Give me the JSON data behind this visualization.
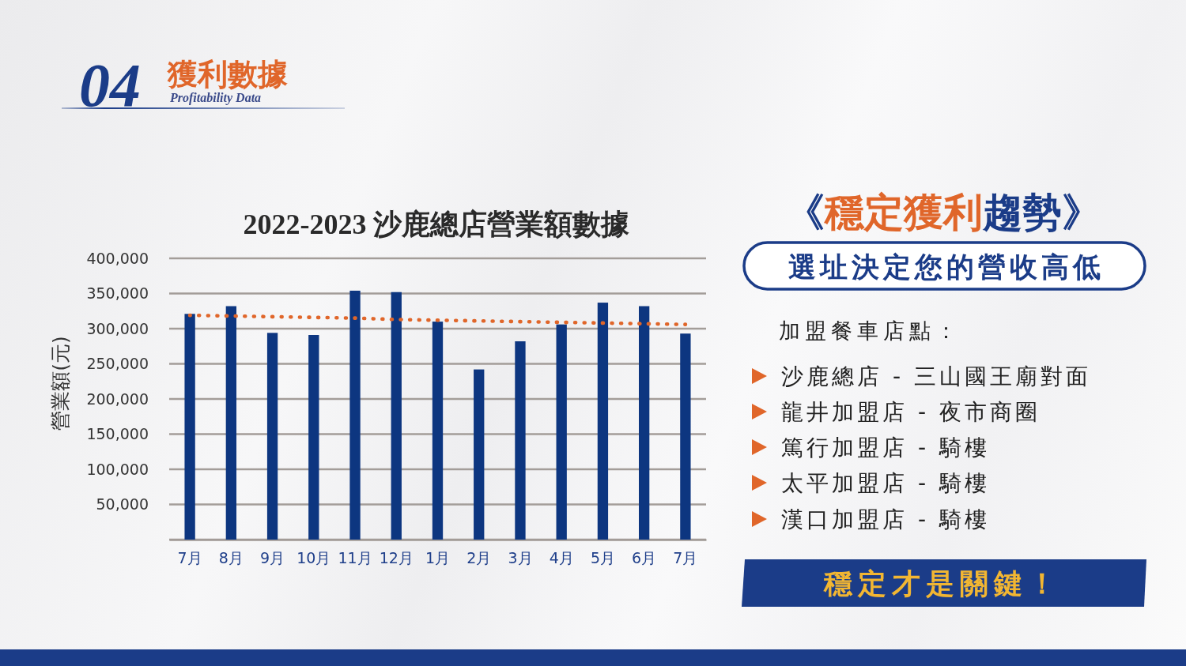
{
  "chart_data": {
    "type": "bar",
    "title": "2022-2023 沙鹿總店營業額數據",
    "ylabel": "營業額(元)",
    "categories": [
      "7月",
      "8月",
      "9月",
      "10月",
      "11月",
      "12月",
      "1月",
      "2月",
      "3月",
      "4月",
      "5月",
      "6月",
      "7月"
    ],
    "series": [
      {
        "color": "#0d3680",
        "values": [
          321000,
          332000,
          294000,
          291000,
          354000,
          352000,
          310000,
          242000,
          282000,
          306000,
          337000,
          332000,
          293000
        ]
      },
      {
        "type": "line",
        "color": "#e0662a",
        "values": [
          319000,
          318000,
          317000,
          316000,
          315000,
          313000,
          312000,
          311000,
          310000,
          309000,
          308000,
          307000,
          306000
        ]
      }
    ],
    "ylim": [
      0,
      400000
    ],
    "yticks": [
      {
        "value": 0,
        "label": null
      },
      {
        "value": 50000,
        "label": "50,000"
      },
      {
        "value": 100000,
        "label": "100,000"
      },
      {
        "value": 150000,
        "label": "150,000"
      },
      {
        "value": 200000,
        "label": "200,000"
      },
      {
        "value": 250000,
        "label": "250,000"
      },
      {
        "value": 300000,
        "label": "300,000"
      },
      {
        "value": 350000,
        "label": "350,000"
      },
      {
        "value": 400000,
        "label": "400,000"
      }
    ],
    "grid": "y",
    "line_style": "dotted",
    "annotations": [
      "04",
      "獲利數據",
      "Profitability Data",
      "《穩定獲利趨勢》",
      "選址決定您的營收高低",
      "加盟餐車店點：",
      "沙鹿總店 - 三山國王廟對面",
      "龍井加盟店 - 夜市商圈",
      "篤行加盟店 - 騎樓",
      "太平加盟店 - 騎樓",
      "漢口加盟店 - 騎樓",
      "穩定才是關鍵！"
    ]
  }
}
